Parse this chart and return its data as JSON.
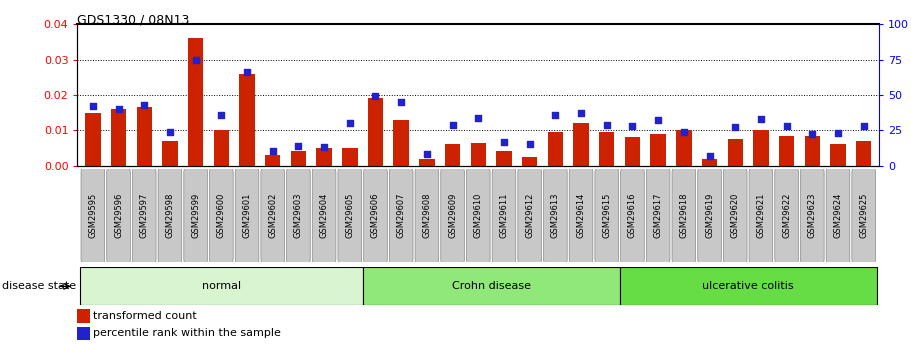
{
  "title": "GDS1330 / 08N13",
  "samples": [
    "GSM29595",
    "GSM29596",
    "GSM29597",
    "GSM29598",
    "GSM29599",
    "GSM29600",
    "GSM29601",
    "GSM29602",
    "GSM29603",
    "GSM29604",
    "GSM29605",
    "GSM29606",
    "GSM29607",
    "GSM29608",
    "GSM29609",
    "GSM29610",
    "GSM29611",
    "GSM29612",
    "GSM29613",
    "GSM29614",
    "GSM29615",
    "GSM29616",
    "GSM29617",
    "GSM29618",
    "GSM29619",
    "GSM29620",
    "GSM29621",
    "GSM29622",
    "GSM29623",
    "GSM29624",
    "GSM29625"
  ],
  "red_bars": [
    0.015,
    0.016,
    0.0165,
    0.007,
    0.036,
    0.01,
    0.026,
    0.003,
    0.004,
    0.005,
    0.005,
    0.019,
    0.013,
    0.002,
    0.006,
    0.0065,
    0.004,
    0.0025,
    0.0095,
    0.012,
    0.0095,
    0.008,
    0.009,
    0.01,
    0.002,
    0.0075,
    0.01,
    0.0085,
    0.0085,
    0.006,
    0.007
  ],
  "blue_squares": [
    42,
    40,
    43,
    24,
    75,
    36,
    66,
    10,
    14,
    13,
    30,
    49,
    45,
    8,
    29,
    34,
    17,
    15,
    36,
    37,
    29,
    28,
    32,
    24,
    7,
    27,
    33,
    28,
    22,
    23,
    28
  ],
  "groups": [
    {
      "label": "normal",
      "start": 0,
      "end": 10,
      "color": "#d8f5d0"
    },
    {
      "label": "Crohn disease",
      "start": 11,
      "end": 20,
      "color": "#90e878"
    },
    {
      "label": "ulcerative colitis",
      "start": 21,
      "end": 30,
      "color": "#66dd44"
    }
  ],
  "ylim_left": [
    0,
    0.04
  ],
  "ylim_right": [
    0,
    100
  ],
  "yticks_left": [
    0,
    0.01,
    0.02,
    0.03,
    0.04
  ],
  "yticks_right": [
    0,
    25,
    50,
    75,
    100
  ],
  "bar_color": "#cc2200",
  "square_color": "#2222cc",
  "plot_bg": "#ffffff",
  "fig_bg": "#ffffff",
  "tick_label_bg": "#c8c8c8",
  "grid_color": "#000000",
  "disease_state_label": "disease state",
  "legend_red": "transformed count",
  "legend_blue": "percentile rank within the sample"
}
